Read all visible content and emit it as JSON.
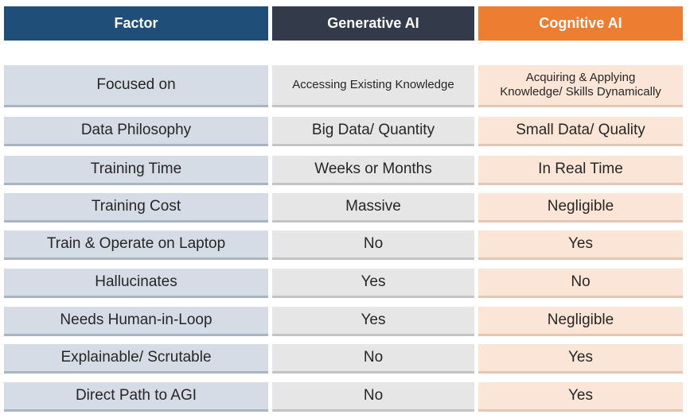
{
  "header": {
    "columns": [
      "Factor",
      "Generative AI",
      "Cognitive AI"
    ]
  },
  "table": {
    "rows": [
      [
        "Focused on",
        "Accessing Existing Knowledge",
        "Acquiring & Applying\nKnowledge/ Skills Dynamically"
      ],
      [
        "Data Philosophy",
        "Big Data/ Quantity",
        "Small Data/ Quality"
      ],
      [
        "Training Time",
        "Weeks or Months",
        "In Real Time"
      ],
      [
        "Training Cost",
        "Massive",
        "Negligible"
      ],
      [
        "Train & Operate on Laptop",
        "No",
        "Yes"
      ],
      [
        "Hallucinates",
        "Yes",
        "No"
      ],
      [
        "Needs Human-in-Loop",
        "Yes",
        "Negligible"
      ],
      [
        "Explainable/ Scrutable",
        "No",
        "Yes"
      ],
      [
        "Direct Path to AGI",
        "No",
        "Yes"
      ]
    ]
  }
}
